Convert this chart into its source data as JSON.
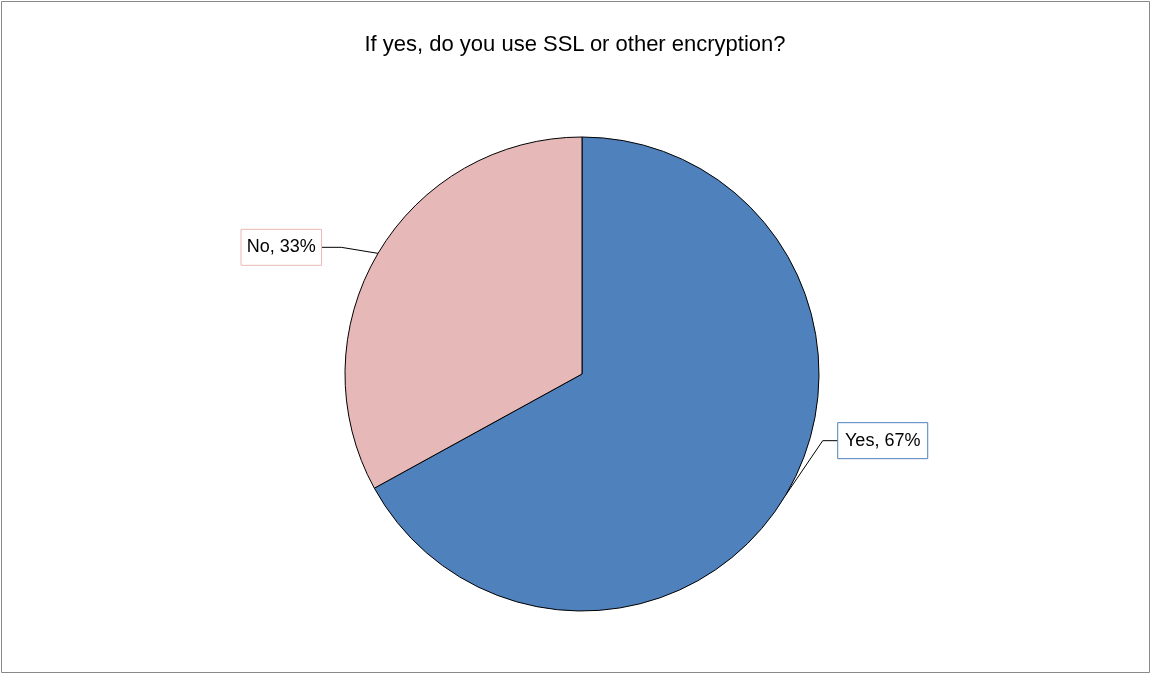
{
  "chart_data": {
    "type": "pie",
    "title": "If yes, do you use SSL or other encryption?",
    "categories": [
      "Yes",
      "No"
    ],
    "values": [
      67,
      33
    ],
    "colors": [
      "#4f81bd",
      "#e6b9b8"
    ],
    "value_labels": [
      "67%",
      "33%"
    ],
    "legend": false
  }
}
